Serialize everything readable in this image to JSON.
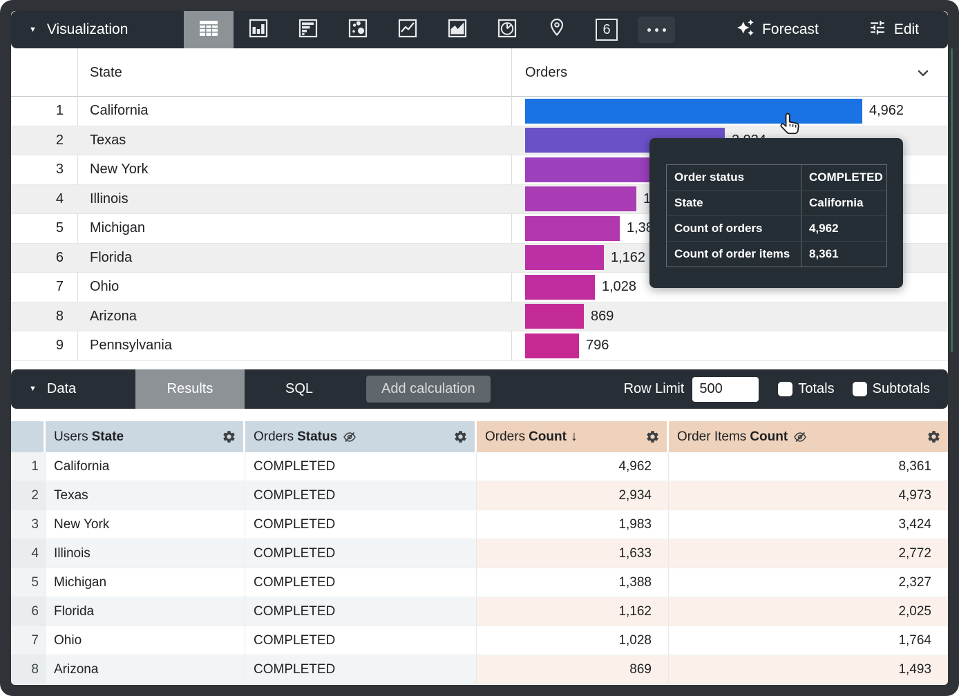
{
  "viz_toolbar": {
    "menu_label": "Visualization",
    "forecast_label": "Forecast",
    "edit_label": "Edit",
    "single_value_glyph": "6",
    "icons": [
      "table",
      "column-chart",
      "bar-chart",
      "scatter",
      "line-chart",
      "area-chart",
      "pie-chart",
      "map",
      "single-value",
      "more"
    ]
  },
  "chart": {
    "type": "bar",
    "state_header": "State",
    "orders_header": "Orders",
    "max_value": 4962,
    "rows": [
      {
        "rank": "1",
        "state": "California",
        "value": 4962,
        "label": "4,962",
        "color": "#1b72e2"
      },
      {
        "rank": "2",
        "state": "Texas",
        "value": 2934,
        "label": "2,934",
        "color": "#6a51c8"
      },
      {
        "rank": "3",
        "state": "New York",
        "value": 1983,
        "label": "1,983",
        "color": "#9c40bd"
      },
      {
        "rank": "4",
        "state": "Illinois",
        "value": 1633,
        "label": "1,633",
        "color": "#a93cb4"
      },
      {
        "rank": "5",
        "state": "Michigan",
        "value": 1388,
        "label": "1,388",
        "color": "#b236ad"
      },
      {
        "rank": "6",
        "state": "Florida",
        "value": 1162,
        "label": "1,162",
        "color": "#bb31a5"
      },
      {
        "rank": "7",
        "state": "Ohio",
        "value": 1028,
        "label": "1,028",
        "color": "#c02d9e"
      },
      {
        "rank": "8",
        "state": "Arizona",
        "value": 869,
        "label": "869",
        "color": "#c42a96"
      },
      {
        "rank": "9",
        "state": "Pennsylvania",
        "value": 796,
        "label": "796",
        "color": "#c62991"
      }
    ]
  },
  "tooltip": {
    "rows": [
      {
        "label": "Order status",
        "value": "COMPLETED"
      },
      {
        "label": "State",
        "value": "California"
      },
      {
        "label": "Count of orders",
        "value": "4,962"
      },
      {
        "label": "Count of order items",
        "value": "8,361"
      }
    ]
  },
  "data_toolbar": {
    "menu_label": "Data",
    "results_tab": "Results",
    "sql_tab": "SQL",
    "add_calculation_label": "Add calculation",
    "row_limit_label": "Row Limit",
    "row_limit_value": "500",
    "totals_label": "Totals",
    "subtotals_label": "Subtotals"
  },
  "data_table": {
    "headers": [
      {
        "prefix": "Users",
        "name": "State"
      },
      {
        "prefix": "Orders",
        "name": "Status"
      },
      {
        "prefix": "Orders",
        "name": "Count"
      },
      {
        "prefix": "Order Items",
        "name": "Count"
      }
    ],
    "rows": [
      {
        "num": "1",
        "state": "California",
        "status": "COMPLETED",
        "orders_count": "4,962",
        "items_count": "8,361"
      },
      {
        "num": "2",
        "state": "Texas",
        "status": "COMPLETED",
        "orders_count": "2,934",
        "items_count": "4,973"
      },
      {
        "num": "3",
        "state": "New York",
        "status": "COMPLETED",
        "orders_count": "1,983",
        "items_count": "3,424"
      },
      {
        "num": "4",
        "state": "Illinois",
        "status": "COMPLETED",
        "orders_count": "1,633",
        "items_count": "2,772"
      },
      {
        "num": "5",
        "state": "Michigan",
        "status": "COMPLETED",
        "orders_count": "1,388",
        "items_count": "2,327"
      },
      {
        "num": "6",
        "state": "Florida",
        "status": "COMPLETED",
        "orders_count": "1,162",
        "items_count": "2,025"
      },
      {
        "num": "7",
        "state": "Ohio",
        "status": "COMPLETED",
        "orders_count": "1,028",
        "items_count": "1,764"
      },
      {
        "num": "8",
        "state": "Arizona",
        "status": "COMPLETED",
        "orders_count": "869",
        "items_count": "1,493"
      }
    ]
  }
}
